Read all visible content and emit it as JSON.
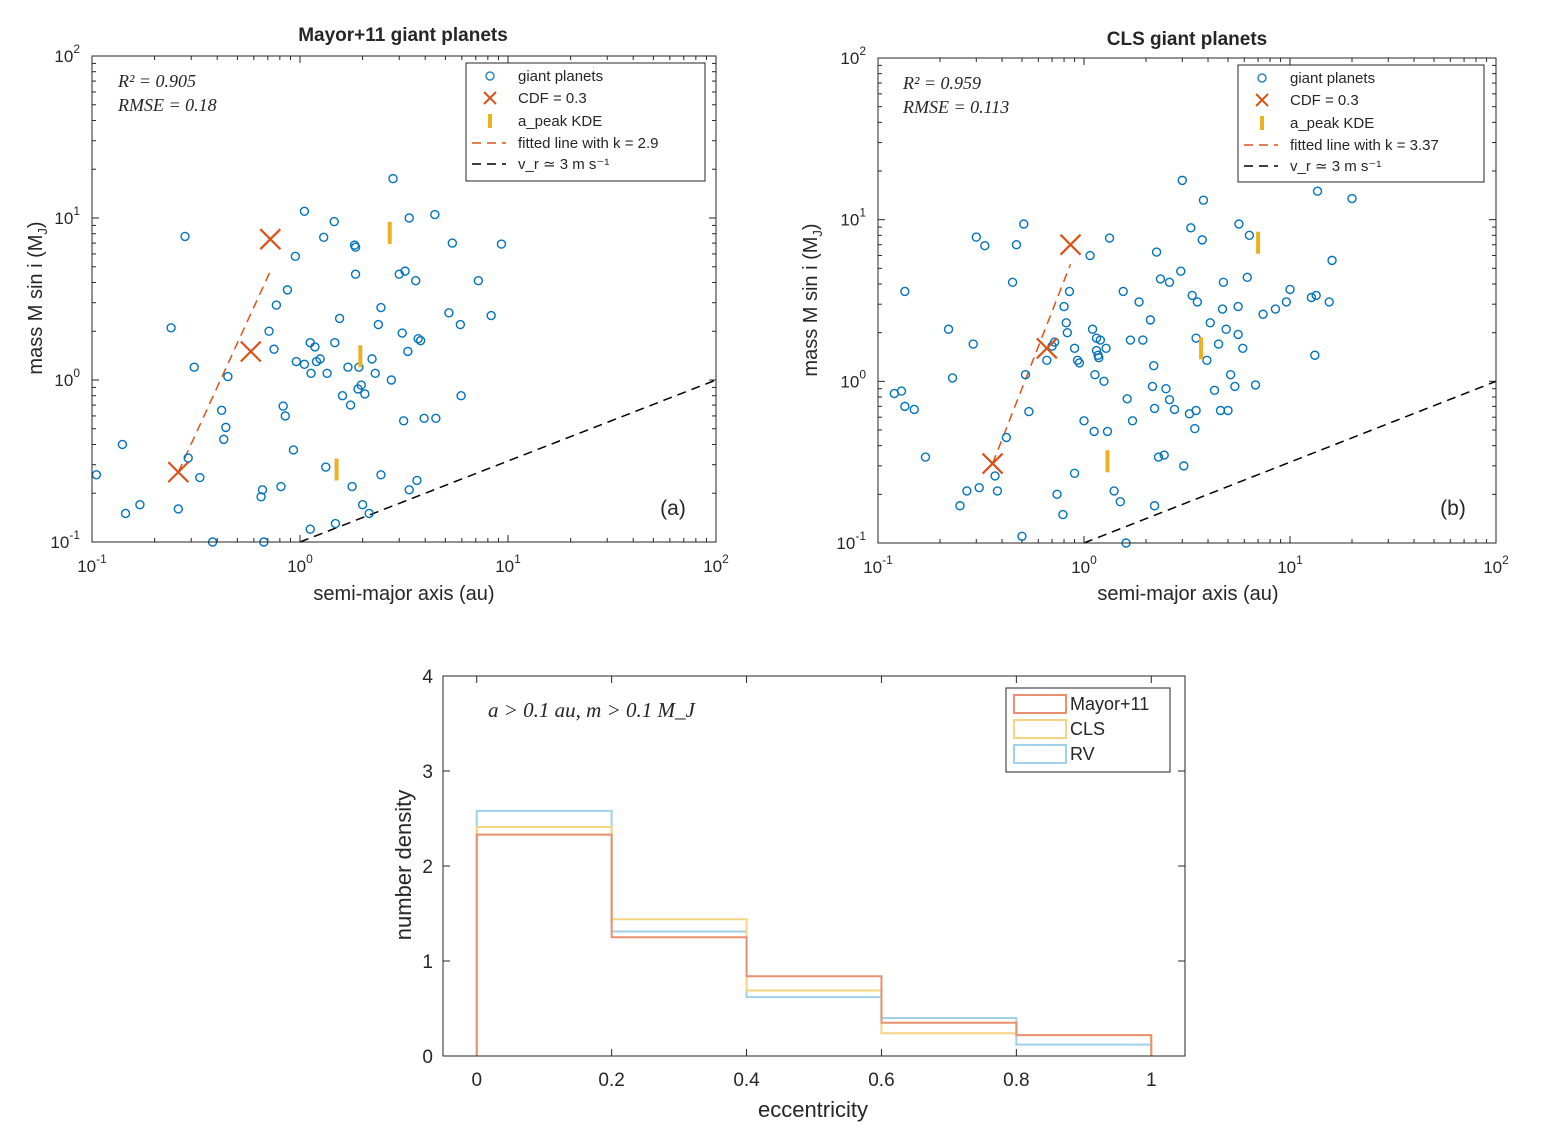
{
  "figure_caption": "",
  "chart_data": [
    {
      "id": "a",
      "type": "scatter",
      "title": "Mayor+11 giant planets",
      "xlabel": "semi-major axis (au)",
      "ylabel": "mass M sin i (M",
      "ylabel_sub": "J",
      "ylabel_close": ")",
      "xscale": "log",
      "yscale": "log",
      "xlim": [
        0.1,
        100
      ],
      "ylim": [
        0.1,
        100
      ],
      "xticks": [
        {
          "base": "10",
          "exp": "-1"
        },
        {
          "base": "10",
          "exp": "0"
        },
        {
          "base": "10",
          "exp": "1"
        },
        {
          "base": "10",
          "exp": "2"
        }
      ],
      "yticks": [
        {
          "base": "10",
          "exp": "-1"
        },
        {
          "base": "10",
          "exp": "0"
        },
        {
          "base": "10",
          "exp": "1"
        },
        {
          "base": "10",
          "exp": "2"
        }
      ],
      "panel_label": "(a)",
      "stats": {
        "r2_label": "R² = 0.905",
        "rmse_label": "RMSE = 0.18"
      },
      "legend": {
        "position": "top-right",
        "entries": [
          "giant planets",
          "CDF = 0.3",
          "a_peak KDE",
          "fitted line with k = 2.9",
          "v_r ≃ 3 m s⁻¹"
        ]
      },
      "points": [
        [
          0.105,
          0.26
        ],
        [
          0.14,
          0.4
        ],
        [
          0.145,
          0.15
        ],
        [
          0.17,
          0.17
        ],
        [
          0.24,
          2.1
        ],
        [
          0.26,
          0.16
        ],
        [
          0.28,
          7.7
        ],
        [
          0.29,
          0.33
        ],
        [
          0.31,
          1.2
        ],
        [
          0.33,
          0.25
        ],
        [
          0.38,
          0.1
        ],
        [
          0.42,
          0.65
        ],
        [
          0.43,
          0.43
        ],
        [
          0.44,
          0.51
        ],
        [
          0.45,
          1.05
        ],
        [
          0.65,
          0.19
        ],
        [
          0.66,
          0.21
        ],
        [
          0.67,
          0.1
        ],
        [
          0.71,
          2.0
        ],
        [
          0.75,
          1.55
        ],
        [
          0.77,
          2.9
        ],
        [
          0.81,
          0.22
        ],
        [
          0.83,
          0.69
        ],
        [
          0.85,
          0.6
        ],
        [
          0.87,
          3.6
        ],
        [
          0.93,
          0.37
        ],
        [
          0.95,
          5.8
        ],
        [
          0.96,
          1.3
        ],
        [
          1.05,
          11.0
        ],
        [
          1.05,
          1.25
        ],
        [
          1.12,
          0.12
        ],
        [
          1.12,
          1.7
        ],
        [
          1.13,
          1.1
        ],
        [
          1.18,
          1.6
        ],
        [
          1.2,
          1.3
        ],
        [
          1.25,
          1.35
        ],
        [
          1.3,
          7.6
        ],
        [
          1.33,
          0.29
        ],
        [
          1.35,
          1.1
        ],
        [
          1.46,
          9.5
        ],
        [
          1.47,
          1.7
        ],
        [
          1.48,
          0.13
        ],
        [
          1.55,
          2.4
        ],
        [
          1.6,
          0.8
        ],
        [
          1.7,
          1.2
        ],
        [
          1.75,
          0.7
        ],
        [
          1.78,
          0.22
        ],
        [
          1.83,
          6.8
        ],
        [
          1.85,
          6.6
        ],
        [
          1.85,
          4.5
        ],
        [
          1.9,
          0.88
        ],
        [
          1.92,
          1.2
        ],
        [
          1.97,
          0.93
        ],
        [
          2.0,
          0.17
        ],
        [
          2.05,
          0.82
        ],
        [
          2.15,
          0.15
        ],
        [
          2.22,
          1.35
        ],
        [
          2.3,
          1.1
        ],
        [
          2.38,
          2.2
        ],
        [
          2.45,
          0.26
        ],
        [
          2.45,
          2.8
        ],
        [
          2.75,
          1.0
        ],
        [
          2.8,
          17.5
        ],
        [
          3.0,
          4.5
        ],
        [
          3.1,
          1.95
        ],
        [
          3.15,
          0.56
        ],
        [
          3.2,
          4.7
        ],
        [
          3.3,
          1.5
        ],
        [
          3.35,
          10.0
        ],
        [
          3.35,
          0.21
        ],
        [
          3.6,
          4.1
        ],
        [
          3.65,
          0.24
        ],
        [
          3.7,
          1.8
        ],
        [
          3.8,
          1.75
        ],
        [
          3.95,
          0.58
        ],
        [
          4.45,
          10.5
        ],
        [
          4.5,
          0.58
        ],
        [
          5.2,
          2.6
        ],
        [
          5.4,
          7.0
        ],
        [
          5.9,
          2.2
        ],
        [
          5.95,
          0.8
        ],
        [
          7.2,
          4.1
        ],
        [
          8.3,
          2.5
        ],
        [
          9.3,
          6.9
        ]
      ],
      "cdf_points": [
        [
          0.26,
          0.27
        ],
        [
          0.58,
          1.5
        ],
        [
          0.72,
          7.4
        ]
      ],
      "a_peak": [
        [
          1.5,
          0.28
        ],
        [
          1.95,
          1.4
        ],
        [
          2.7,
          8.1
        ]
      ],
      "fit_line": [
        [
          0.26,
          0.27
        ],
        [
          0.72,
          4.7
        ]
      ],
      "vr_line": [
        [
          1.0,
          0.1
        ],
        [
          100,
          1.0
        ]
      ]
    },
    {
      "id": "b",
      "type": "scatter",
      "title": "CLS giant planets",
      "xlabel": "semi-major axis (au)",
      "ylabel": "mass M sin i (M",
      "ylabel_sub": "J",
      "ylabel_close": ")",
      "xscale": "log",
      "yscale": "log",
      "xlim": [
        0.1,
        100
      ],
      "ylim": [
        0.1,
        100
      ],
      "xticks": [
        {
          "base": "10",
          "exp": "-1"
        },
        {
          "base": "10",
          "exp": "0"
        },
        {
          "base": "10",
          "exp": "1"
        },
        {
          "base": "10",
          "exp": "2"
        }
      ],
      "yticks": [
        {
          "base": "10",
          "exp": "-1"
        },
        {
          "base": "10",
          "exp": "0"
        },
        {
          "base": "10",
          "exp": "1"
        },
        {
          "base": "10",
          "exp": "2"
        }
      ],
      "panel_label": "(b)",
      "stats": {
        "r2_label": "R² = 0.959",
        "rmse_label": "RMSE = 0.113"
      },
      "legend": {
        "position": "top-right",
        "entries": [
          "giant planets",
          "CDF = 0.3",
          "a_peak KDE",
          "fitted line with k = 3.37",
          "v_r ≃ 3 m s⁻¹"
        ]
      },
      "points": [
        [
          0.12,
          0.84
        ],
        [
          0.13,
          0.87
        ],
        [
          0.135,
          0.7
        ],
        [
          0.135,
          3.6
        ],
        [
          0.15,
          0.67
        ],
        [
          0.17,
          0.34
        ],
        [
          0.22,
          2.1
        ],
        [
          0.23,
          1.05
        ],
        [
          0.25,
          0.17
        ],
        [
          0.27,
          0.21
        ],
        [
          0.29,
          1.7
        ],
        [
          0.3,
          7.8
        ],
        [
          0.31,
          0.22
        ],
        [
          0.33,
          6.9
        ],
        [
          0.37,
          0.26
        ],
        [
          0.38,
          0.21
        ],
        [
          0.42,
          0.45
        ],
        [
          0.45,
          4.1
        ],
        [
          0.47,
          7.0
        ],
        [
          0.5,
          0.11
        ],
        [
          0.51,
          9.4
        ],
        [
          0.52,
          1.1
        ],
        [
          0.54,
          0.65
        ],
        [
          0.66,
          1.35
        ],
        [
          0.7,
          1.65
        ],
        [
          0.72,
          1.75
        ],
        [
          0.74,
          0.2
        ],
        [
          0.79,
          0.15
        ],
        [
          0.8,
          2.9
        ],
        [
          0.82,
          2.3
        ],
        [
          0.83,
          2.0
        ],
        [
          0.85,
          3.6
        ],
        [
          0.9,
          0.27
        ],
        [
          0.9,
          1.6
        ],
        [
          0.93,
          1.35
        ],
        [
          0.95,
          1.3
        ],
        [
          1.0,
          0.57
        ],
        [
          1.07,
          6.0
        ],
        [
          1.1,
          2.1
        ],
        [
          1.12,
          0.49
        ],
        [
          1.13,
          1.1
        ],
        [
          1.15,
          1.85
        ],
        [
          1.15,
          1.55
        ],
        [
          1.17,
          1.45
        ],
        [
          1.18,
          1.4
        ],
        [
          1.2,
          1.8
        ],
        [
          1.25,
          1.0
        ],
        [
          1.28,
          1.6
        ],
        [
          1.3,
          0.49
        ],
        [
          1.33,
          7.7
        ],
        [
          1.4,
          0.21
        ],
        [
          1.5,
          0.18
        ],
        [
          1.55,
          3.6
        ],
        [
          1.6,
          0.1
        ],
        [
          1.62,
          0.78
        ],
        [
          1.68,
          1.8
        ],
        [
          1.72,
          0.57
        ],
        [
          1.85,
          3.1
        ],
        [
          1.93,
          1.8
        ],
        [
          2.1,
          2.4
        ],
        [
          2.15,
          0.93
        ],
        [
          2.18,
          1.25
        ],
        [
          2.2,
          0.17
        ],
        [
          2.2,
          0.68
        ],
        [
          2.25,
          6.3
        ],
        [
          2.3,
          0.34
        ],
        [
          2.35,
          4.3
        ],
        [
          2.45,
          0.35
        ],
        [
          2.5,
          0.9
        ],
        [
          2.6,
          4.1
        ],
        [
          2.6,
          0.77
        ],
        [
          2.75,
          0.67
        ],
        [
          2.95,
          4.8
        ],
        [
          3.0,
          17.5
        ],
        [
          3.05,
          0.3
        ],
        [
          3.25,
          0.63
        ],
        [
          3.3,
          8.9
        ],
        [
          3.35,
          3.4
        ],
        [
          3.45,
          0.51
        ],
        [
          3.5,
          0.66
        ],
        [
          3.5,
          1.85
        ],
        [
          3.55,
          3.1
        ],
        [
          3.75,
          7.5
        ],
        [
          3.8,
          13.2
        ],
        [
          3.95,
          1.35
        ],
        [
          4.1,
          2.3
        ],
        [
          4.3,
          0.88
        ],
        [
          4.5,
          1.7
        ],
        [
          4.6,
          0.66
        ],
        [
          4.7,
          2.8
        ],
        [
          4.75,
          4.1
        ],
        [
          4.9,
          2.1
        ],
        [
          5.0,
          0.66
        ],
        [
          5.15,
          1.1
        ],
        [
          5.4,
          0.93
        ],
        [
          5.6,
          1.95
        ],
        [
          5.6,
          2.9
        ],
        [
          5.65,
          9.4
        ],
        [
          5.9,
          1.6
        ],
        [
          6.2,
          4.4
        ],
        [
          6.35,
          8.0
        ],
        [
          6.8,
          0.95
        ],
        [
          7.4,
          2.6
        ],
        [
          8.5,
          2.8
        ],
        [
          9.6,
          3.1
        ],
        [
          10.0,
          3.7
        ],
        [
          12.7,
          3.3
        ],
        [
          13.2,
          1.45
        ],
        [
          13.4,
          3.4
        ],
        [
          13.6,
          15.0
        ],
        [
          15.5,
          3.1
        ],
        [
          16.0,
          5.6
        ],
        [
          20.0,
          13.5
        ]
      ],
      "cdf_points": [
        [
          0.36,
          0.31
        ],
        [
          0.66,
          1.6
        ],
        [
          0.86,
          7.0
        ]
      ],
      "a_peak": [
        [
          1.3,
          0.32
        ],
        [
          3.7,
          1.6
        ],
        [
          7.0,
          7.2
        ]
      ],
      "fit_line": [
        [
          0.36,
          0.31
        ],
        [
          0.86,
          5.3
        ]
      ],
      "vr_line": [
        [
          1.0,
          0.1
        ],
        [
          100,
          1.0
        ]
      ]
    },
    {
      "id": "c",
      "type": "histogram",
      "title": "",
      "annotation": "a > 0.1 au, m > 0.1 M_J",
      "xlabel": "eccentricity",
      "ylabel": "number density",
      "xlim": [
        -0.05,
        1.05
      ],
      "ylim": [
        0,
        4
      ],
      "xtick_labels": [
        "0",
        "0.2",
        "0.4",
        "0.6",
        "0.8",
        "1"
      ],
      "ytick_labels": [
        "0",
        "1",
        "2",
        "3",
        "4"
      ],
      "bin_edges": [
        0,
        0.2,
        0.4,
        0.6,
        0.8,
        1.0
      ],
      "legend": {
        "position": "top-right",
        "entries": [
          "Mayor+11",
          "CLS",
          "RV"
        ]
      },
      "series": [
        {
          "name": "Mayor+11",
          "values": [
            2.33,
            1.25,
            0.84,
            0.35,
            0.22
          ],
          "color": "#e8906f"
        },
        {
          "name": "CLS",
          "values": [
            2.41,
            1.44,
            0.69,
            0.24,
            0.22
          ],
          "color": "#f6d482"
        },
        {
          "name": "RV",
          "values": [
            2.58,
            1.31,
            0.62,
            0.4,
            0.12
          ],
          "color": "#9fd2ea"
        }
      ]
    }
  ]
}
